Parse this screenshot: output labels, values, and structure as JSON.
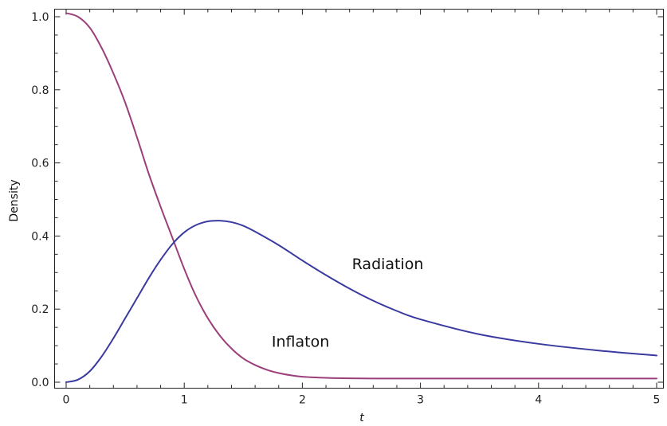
{
  "chart_data": {
    "type": "line",
    "title": "",
    "xlabel": "t",
    "ylabel": "Density",
    "xlim": [
      0,
      5
    ],
    "ylim": [
      0,
      1.02
    ],
    "grid": false,
    "x_ticks": [
      0,
      1,
      2,
      3,
      4,
      5
    ],
    "x_tick_labels": [
      "0",
      "1",
      "2",
      "3",
      "4",
      "5"
    ],
    "y_ticks": [
      0,
      0.2,
      0.4,
      0.6,
      0.8,
      1.0
    ],
    "y_tick_labels": [
      "0.0",
      "0.2",
      "0.4",
      "0.6",
      "0.8",
      "1.0"
    ],
    "series": [
      {
        "color": "#9b3f7a",
        "x": [
          0,
          0.1,
          0.2,
          0.3,
          0.4,
          0.5,
          0.6,
          0.7,
          0.8,
          0.9,
          1.0,
          1.1,
          1.2,
          1.3,
          1.4,
          1.5,
          1.6,
          1.7,
          1.8,
          1.9,
          2.0,
          2.2,
          2.4,
          2.6,
          2.8,
          3.0,
          3.5,
          4.0,
          4.5,
          5.0
        ],
        "y": [
          1.01,
          1.0,
          0.97,
          0.915,
          0.845,
          0.765,
          0.67,
          0.57,
          0.48,
          0.395,
          0.31,
          0.235,
          0.175,
          0.128,
          0.092,
          0.065,
          0.047,
          0.034,
          0.025,
          0.019,
          0.015,
          0.012,
          0.0105,
          0.01,
          0.01,
          0.01,
          0.01,
          0.01,
          0.01,
          0.01
        ]
      },
      {
        "color": "#3a3aa0",
        "x": [
          0,
          0.1,
          0.2,
          0.3,
          0.4,
          0.5,
          0.6,
          0.7,
          0.8,
          0.9,
          1.0,
          1.1,
          1.2,
          1.3,
          1.4,
          1.5,
          1.6,
          1.8,
          2.0,
          2.2,
          2.4,
          2.6,
          2.8,
          3.0,
          3.5,
          4.0,
          4.5,
          5.0
        ],
        "y": [
          0.0,
          0.007,
          0.03,
          0.07,
          0.12,
          0.175,
          0.23,
          0.285,
          0.335,
          0.378,
          0.41,
          0.43,
          0.44,
          0.442,
          0.438,
          0.428,
          0.412,
          0.375,
          0.333,
          0.293,
          0.256,
          0.223,
          0.195,
          0.172,
          0.131,
          0.105,
          0.087,
          0.073
        ]
      }
    ],
    "annotations": [
      {
        "text": "Radiation",
        "x": 2.42,
        "y": 0.325
      },
      {
        "text": "Inflaton",
        "x": 1.74,
        "y": 0.112
      }
    ]
  }
}
